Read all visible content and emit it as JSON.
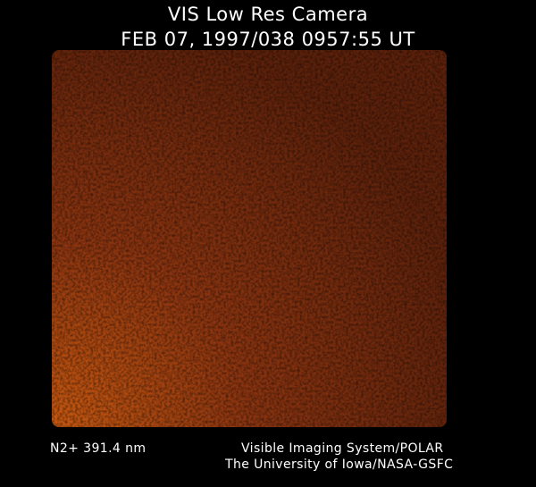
{
  "header": {
    "instrument": "VIS Low Res Camera",
    "timestamp": "FEB 07, 1997/038 0957:55 UT"
  },
  "image": {
    "description_icon": "camera-frame-image",
    "colormap": [
      "#000000",
      "#5a200a",
      "#8a3510",
      "#c85a12"
    ]
  },
  "footer": {
    "wavelength": "N2+ 391.4 nm",
    "credit_line1": "Visible Imaging System/POLAR",
    "credit_line2": "The University of Iowa/NASA-GSFC"
  }
}
